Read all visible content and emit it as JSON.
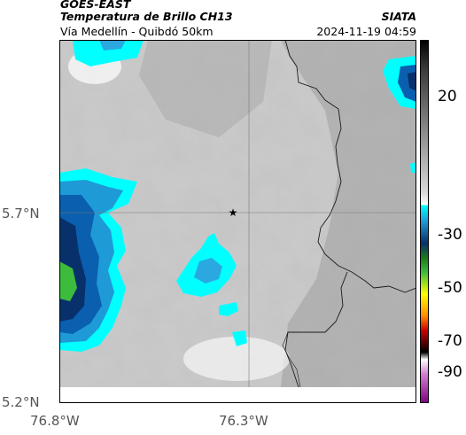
{
  "header": {
    "satellite": "GOES-EAST",
    "product": "Temperatura de Brillo CH13",
    "region": "Vía Medellín - Quibdó 50km",
    "agency": "SIATA",
    "timestamp": "2024-11-19 04:59"
  },
  "map": {
    "y_ticks": [
      "5.7°N",
      "5.2°N"
    ],
    "x_ticks": [
      "76.8°W",
      "76.3°W"
    ],
    "marker": "star-marker",
    "colors": {
      "cold_cloud_blue": "#0a7fc8",
      "deep_blue": "#08306b",
      "cyan": "#00ffff",
      "green": "#3dbb3d",
      "land_gray": "#9a9a9a"
    }
  },
  "colorbar": {
    "ticks": [
      "20",
      "-30",
      "-50",
      "-70",
      "-90"
    ],
    "unit_hint": "brightness temperature"
  }
}
